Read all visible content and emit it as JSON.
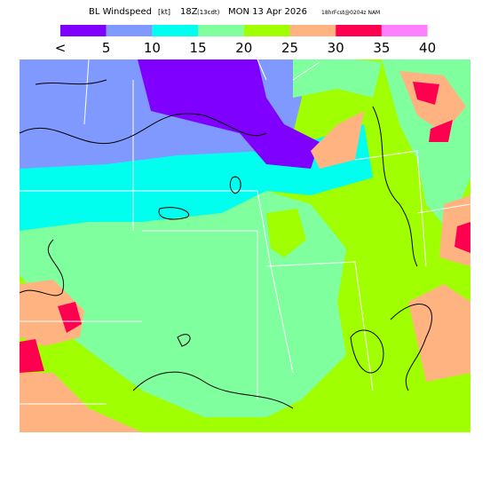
{
  "header": {
    "title": "BL Windspeed",
    "units": "[kt]",
    "time": "18Z",
    "local": "(13cdt)",
    "date": "MON 13 Apr 2026",
    "forecast": "18hrFcst@0204z NAM"
  },
  "legend": {
    "labels": [
      "<",
      "5",
      "10",
      "15",
      "20",
      "25",
      "30",
      "35",
      "40"
    ],
    "colors": [
      "#8000ff",
      "#8099ff",
      "#00ffee",
      "#80ff9f",
      "#a0ff00",
      "#ffb380",
      "#ff0050",
      "#ff80ff"
    ]
  }
}
